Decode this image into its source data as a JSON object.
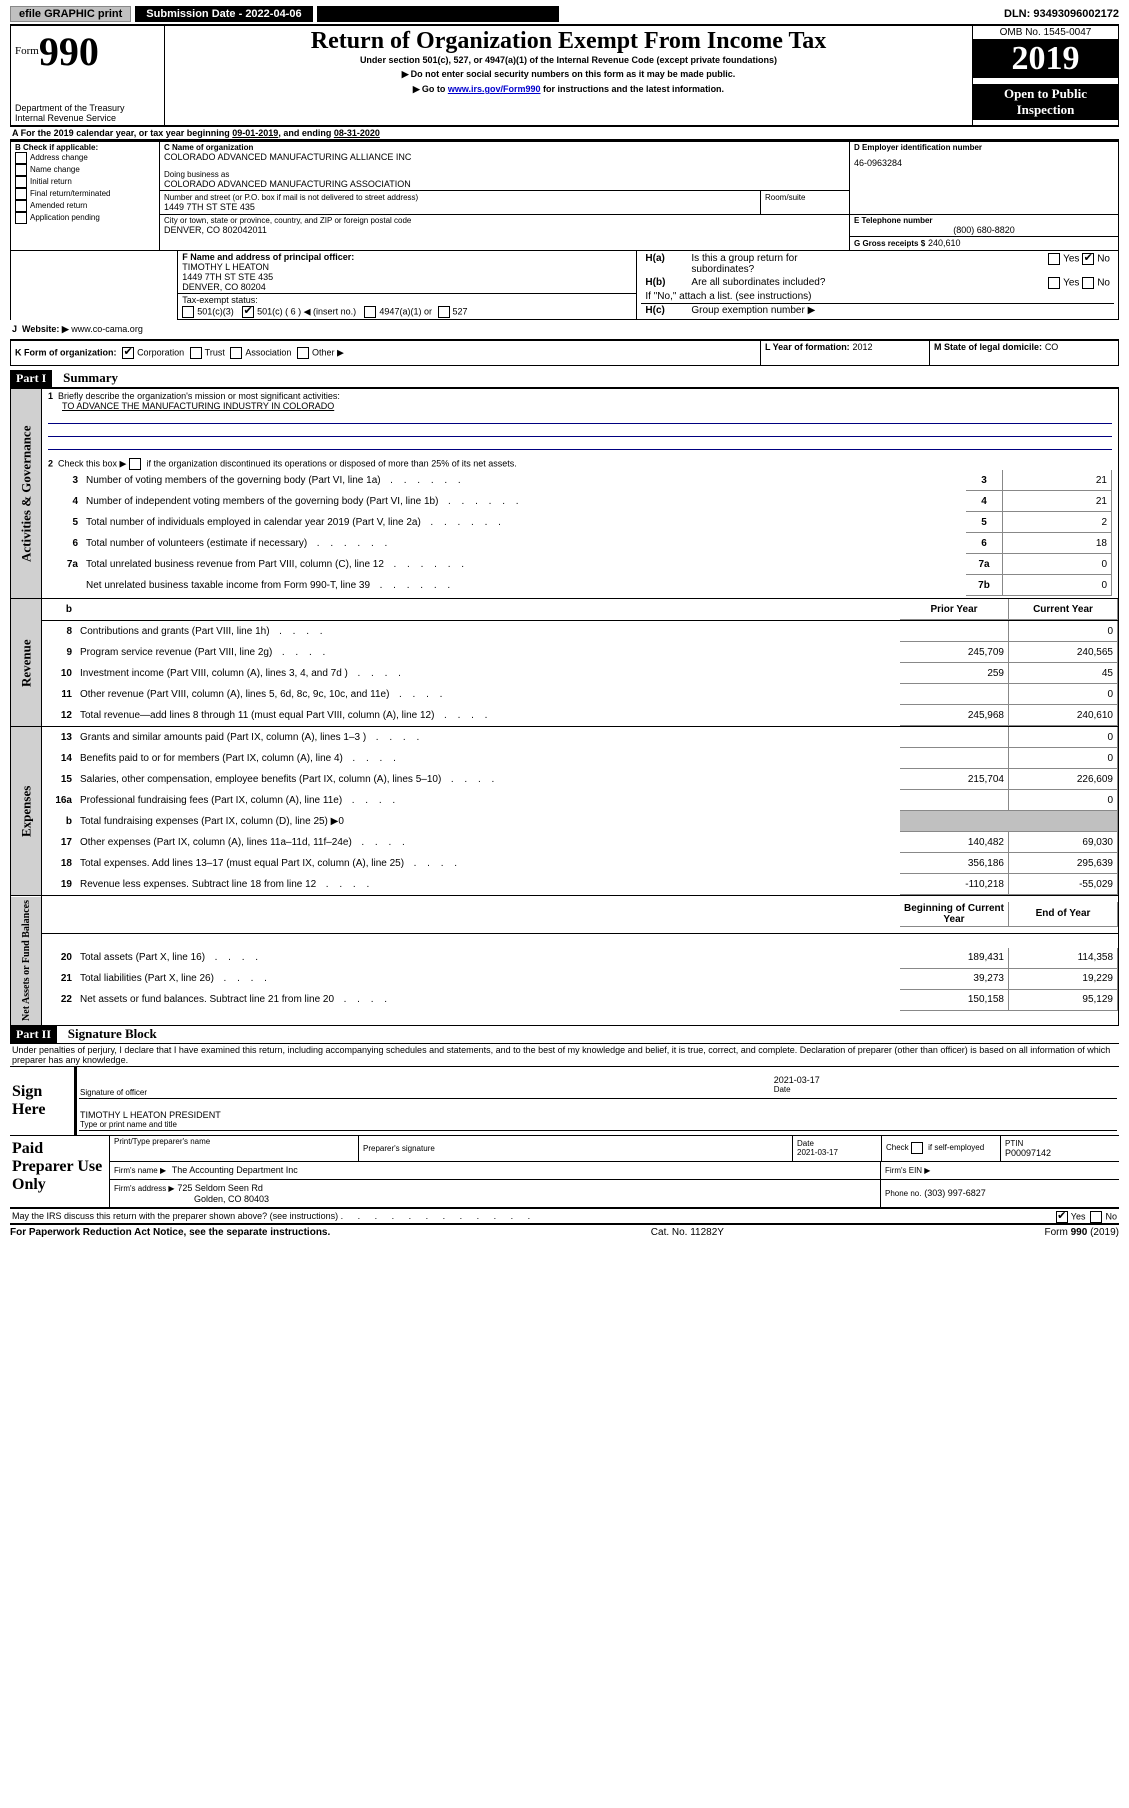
{
  "top_bar": {
    "efile": "efile GRAPHIC print",
    "submission_date_label": "Submission Date - 2022-04-06",
    "dln": "DLN: 93493096002172"
  },
  "header": {
    "form_label": "Form",
    "form_number": "990",
    "department": "Department of the Treasury",
    "irs": "Internal Revenue Service",
    "title": "Return of Organization Exempt From Income Tax",
    "subtitle": "Under section 501(c), 527, or 4947(a)(1) of the Internal Revenue Code (except private foundations)",
    "note1": "Do not enter social security numbers on this form as it may be made public.",
    "note2_pre": "Go to ",
    "note2_link": "www.irs.gov/Form990",
    "note2_post": " for instructions and the latest information.",
    "omb": "OMB No. 1545-0047",
    "year": "2019",
    "open_public": "Open to Public Inspection"
  },
  "line_a": {
    "text_pre": "For the 2019 calendar year, or tax year beginning ",
    "begin": "09-01-2019",
    "mid": ", and ending ",
    "end": "08-31-2020"
  },
  "box_b": {
    "label": "B Check if applicable:",
    "opts": [
      "Address change",
      "Name change",
      "Initial return",
      "Final return/terminated",
      "Amended return",
      "Application pending"
    ]
  },
  "box_c": {
    "name_label": "C Name of organization",
    "name": "COLORADO ADVANCED MANUFACTURING ALLIANCE INC",
    "dba_label": "Doing business as",
    "dba": "COLORADO ADVANCED MANUFACTURING ASSOCIATION",
    "street_label": "Number and street (or P.O. box if mail is not delivered to street address)",
    "room_label": "Room/suite",
    "street": "1449 7TH ST STE 435",
    "city_label": "City or town, state or province, country, and ZIP or foreign postal code",
    "city": "DENVER, CO  802042011"
  },
  "box_d": {
    "label": "D Employer identification number",
    "value": "46-0963284"
  },
  "box_e": {
    "label": "E Telephone number",
    "value": "(800) 680-8820"
  },
  "box_g": {
    "label": "G Gross receipts $",
    "value": "240,610"
  },
  "box_f": {
    "label": "F Name and address of principal officer:",
    "line1": "TIMOTHY L HEATON",
    "line2": "1449 7TH ST STE 435",
    "line3": "DENVER, CO  80204"
  },
  "box_h": {
    "a_label": "H(a)",
    "a_text1": "Is this a group return for",
    "a_text2": "subordinates?",
    "b_label": "H(b)",
    "b_text": "Are all subordinates included?",
    "note": "If \"No,\" attach a list. (see instructions)",
    "c_label": "H(c)",
    "c_text": "Group exemption number ▶"
  },
  "yes": "Yes",
  "no": "No",
  "tax_exempt": {
    "label": "Tax-exempt status:",
    "o1": "501(c)(3)",
    "o2_a": "501(c) ( 6 ) ◀ (insert no.)",
    "o3": "4947(a)(1) or",
    "o4": "527"
  },
  "website": {
    "label": "Website: ▶",
    "value": "www.co-cama.org"
  },
  "line_k": {
    "label": "K Form of organization:",
    "opts": [
      "Corporation",
      "Trust",
      "Association",
      "Other ▶"
    ]
  },
  "line_l": {
    "label": "L Year of formation:",
    "value": "2012"
  },
  "line_m": {
    "label": "M State of legal domicile:",
    "value": "CO"
  },
  "part1": {
    "label": "Part I",
    "title": "Summary"
  },
  "p1_line1": {
    "num": "1",
    "text": "Briefly describe the organization's mission or most significant activities:",
    "mission": "TO ADVANCE THE MANUFACTURING INDUSTRY IN COLORADO"
  },
  "p1_line2": {
    "num": "2",
    "text": "Check this box ▶",
    "text2": "if the organization discontinued its operations or disposed of more than 25% of its net assets."
  },
  "p1_lines_top": [
    {
      "num": "3",
      "desc": "Number of voting members of the governing body (Part VI, line 1a)",
      "cell": "3",
      "val": "21"
    },
    {
      "num": "4",
      "desc": "Number of independent voting members of the governing body (Part VI, line 1b)",
      "cell": "4",
      "val": "21"
    },
    {
      "num": "5",
      "desc": "Total number of individuals employed in calendar year 2019 (Part V, line 2a)",
      "cell": "5",
      "val": "2"
    },
    {
      "num": "6",
      "desc": "Total number of volunteers (estimate if necessary)",
      "cell": "6",
      "val": "18"
    },
    {
      "num": "7a",
      "desc": "Total unrelated business revenue from Part VIII, column (C), line 12",
      "cell": "7a",
      "val": "0"
    },
    {
      "num": "",
      "desc": "Net unrelated business taxable income from Form 990-T, line 39",
      "cell": "7b",
      "val": "0"
    }
  ],
  "col_headers": {
    "prior": "Prior Year",
    "current": "Current Year",
    "boy": "Beginning of Current Year",
    "eoy": "End of Year"
  },
  "tabs": {
    "gov": "Activities & Governance",
    "rev": "Revenue",
    "exp": "Expenses",
    "net": "Net Assets or Fund Balances"
  },
  "revenue_lines": [
    {
      "num": "8",
      "desc": "Contributions and grants (Part VIII, line 1h)",
      "prior": "",
      "cur": "0"
    },
    {
      "num": "9",
      "desc": "Program service revenue (Part VIII, line 2g)",
      "prior": "245,709",
      "cur": "240,565"
    },
    {
      "num": "10",
      "desc": "Investment income (Part VIII, column (A), lines 3, 4, and 7d )",
      "prior": "259",
      "cur": "45"
    },
    {
      "num": "11",
      "desc": "Other revenue (Part VIII, column (A), lines 5, 6d, 8c, 9c, 10c, and 11e)",
      "prior": "",
      "cur": "0"
    },
    {
      "num": "12",
      "desc": "Total revenue—add lines 8 through 11 (must equal Part VIII, column (A), line 12)",
      "prior": "245,968",
      "cur": "240,610"
    }
  ],
  "expense_lines": [
    {
      "num": "13",
      "desc": "Grants and similar amounts paid (Part IX, column (A), lines 1–3 )",
      "prior": "",
      "cur": "0"
    },
    {
      "num": "14",
      "desc": "Benefits paid to or for members (Part IX, column (A), line 4)",
      "prior": "",
      "cur": "0"
    },
    {
      "num": "15",
      "desc": "Salaries, other compensation, employee benefits (Part IX, column (A), lines 5–10)",
      "prior": "215,704",
      "cur": "226,609"
    },
    {
      "num": "16a",
      "desc": "Professional fundraising fees (Part IX, column (A), line 11e)",
      "prior": "",
      "cur": "0"
    },
    {
      "num": "b",
      "desc": "Total fundraising expenses (Part IX, column (D), line 25) ▶0",
      "prior": null,
      "cur": null
    },
    {
      "num": "17",
      "desc": "Other expenses (Part IX, column (A), lines 11a–11d, 11f–24e)",
      "prior": "140,482",
      "cur": "69,030"
    },
    {
      "num": "18",
      "desc": "Total expenses. Add lines 13–17 (must equal Part IX, column (A), line 25)",
      "prior": "356,186",
      "cur": "295,639"
    },
    {
      "num": "19",
      "desc": "Revenue less expenses. Subtract line 18 from line 12",
      "prior": "-110,218",
      "cur": "-55,029"
    }
  ],
  "net_lines": [
    {
      "num": "20",
      "desc": "Total assets (Part X, line 16)",
      "prior": "189,431",
      "cur": "114,358"
    },
    {
      "num": "21",
      "desc": "Total liabilities (Part X, line 26)",
      "prior": "39,273",
      "cur": "19,229"
    },
    {
      "num": "22",
      "desc": "Net assets or fund balances. Subtract line 21 from line 20",
      "prior": "150,158",
      "cur": "95,129"
    }
  ],
  "part2": {
    "label": "Part II",
    "title": "Signature Block"
  },
  "perjury": "Under penalties of perjury, I declare that I have examined this return, including accompanying schedules and statements, and to the best of my knowledge and belief, it is true, correct, and complete. Declaration of preparer (other than officer) is based on all information of which preparer has any knowledge.",
  "sign": {
    "label": "Sign Here",
    "sig_officer": "Signature of officer",
    "date_label": "Date",
    "date": "2021-03-17",
    "name": "TIMOTHY L HEATON  PRESIDENT",
    "type_label": "Type or print name and title"
  },
  "paid": {
    "label": "Paid Preparer Use Only",
    "print_label": "Print/Type preparer's name",
    "sig_label": "Preparer's signature",
    "date_label": "Date",
    "date": "2021-03-17",
    "check_label": "Check",
    "check_suffix": "if self-employed",
    "ptin_label": "PTIN",
    "ptin": "P00097142",
    "firm_name_label": "Firm's name   ▶",
    "firm_name": "The Accounting Department Inc",
    "firm_ein_label": "Firm's EIN ▶",
    "firm_addr_label": "Firm's address ▶",
    "firm_addr1": "725 Seldom Seen Rd",
    "firm_addr2": "Golden, CO  80403",
    "phone_label": "Phone no.",
    "phone": "(303) 997-6827"
  },
  "discuss": "May the IRS discuss this return with the preparer shown above? (see instructions)",
  "footer": {
    "left": "For Paperwork Reduction Act Notice, see the separate instructions.",
    "mid": "Cat. No. 11282Y",
    "right_pre": "Form ",
    "right_bold": "990",
    "right_post": " (2019)"
  },
  "b_line": "b"
}
